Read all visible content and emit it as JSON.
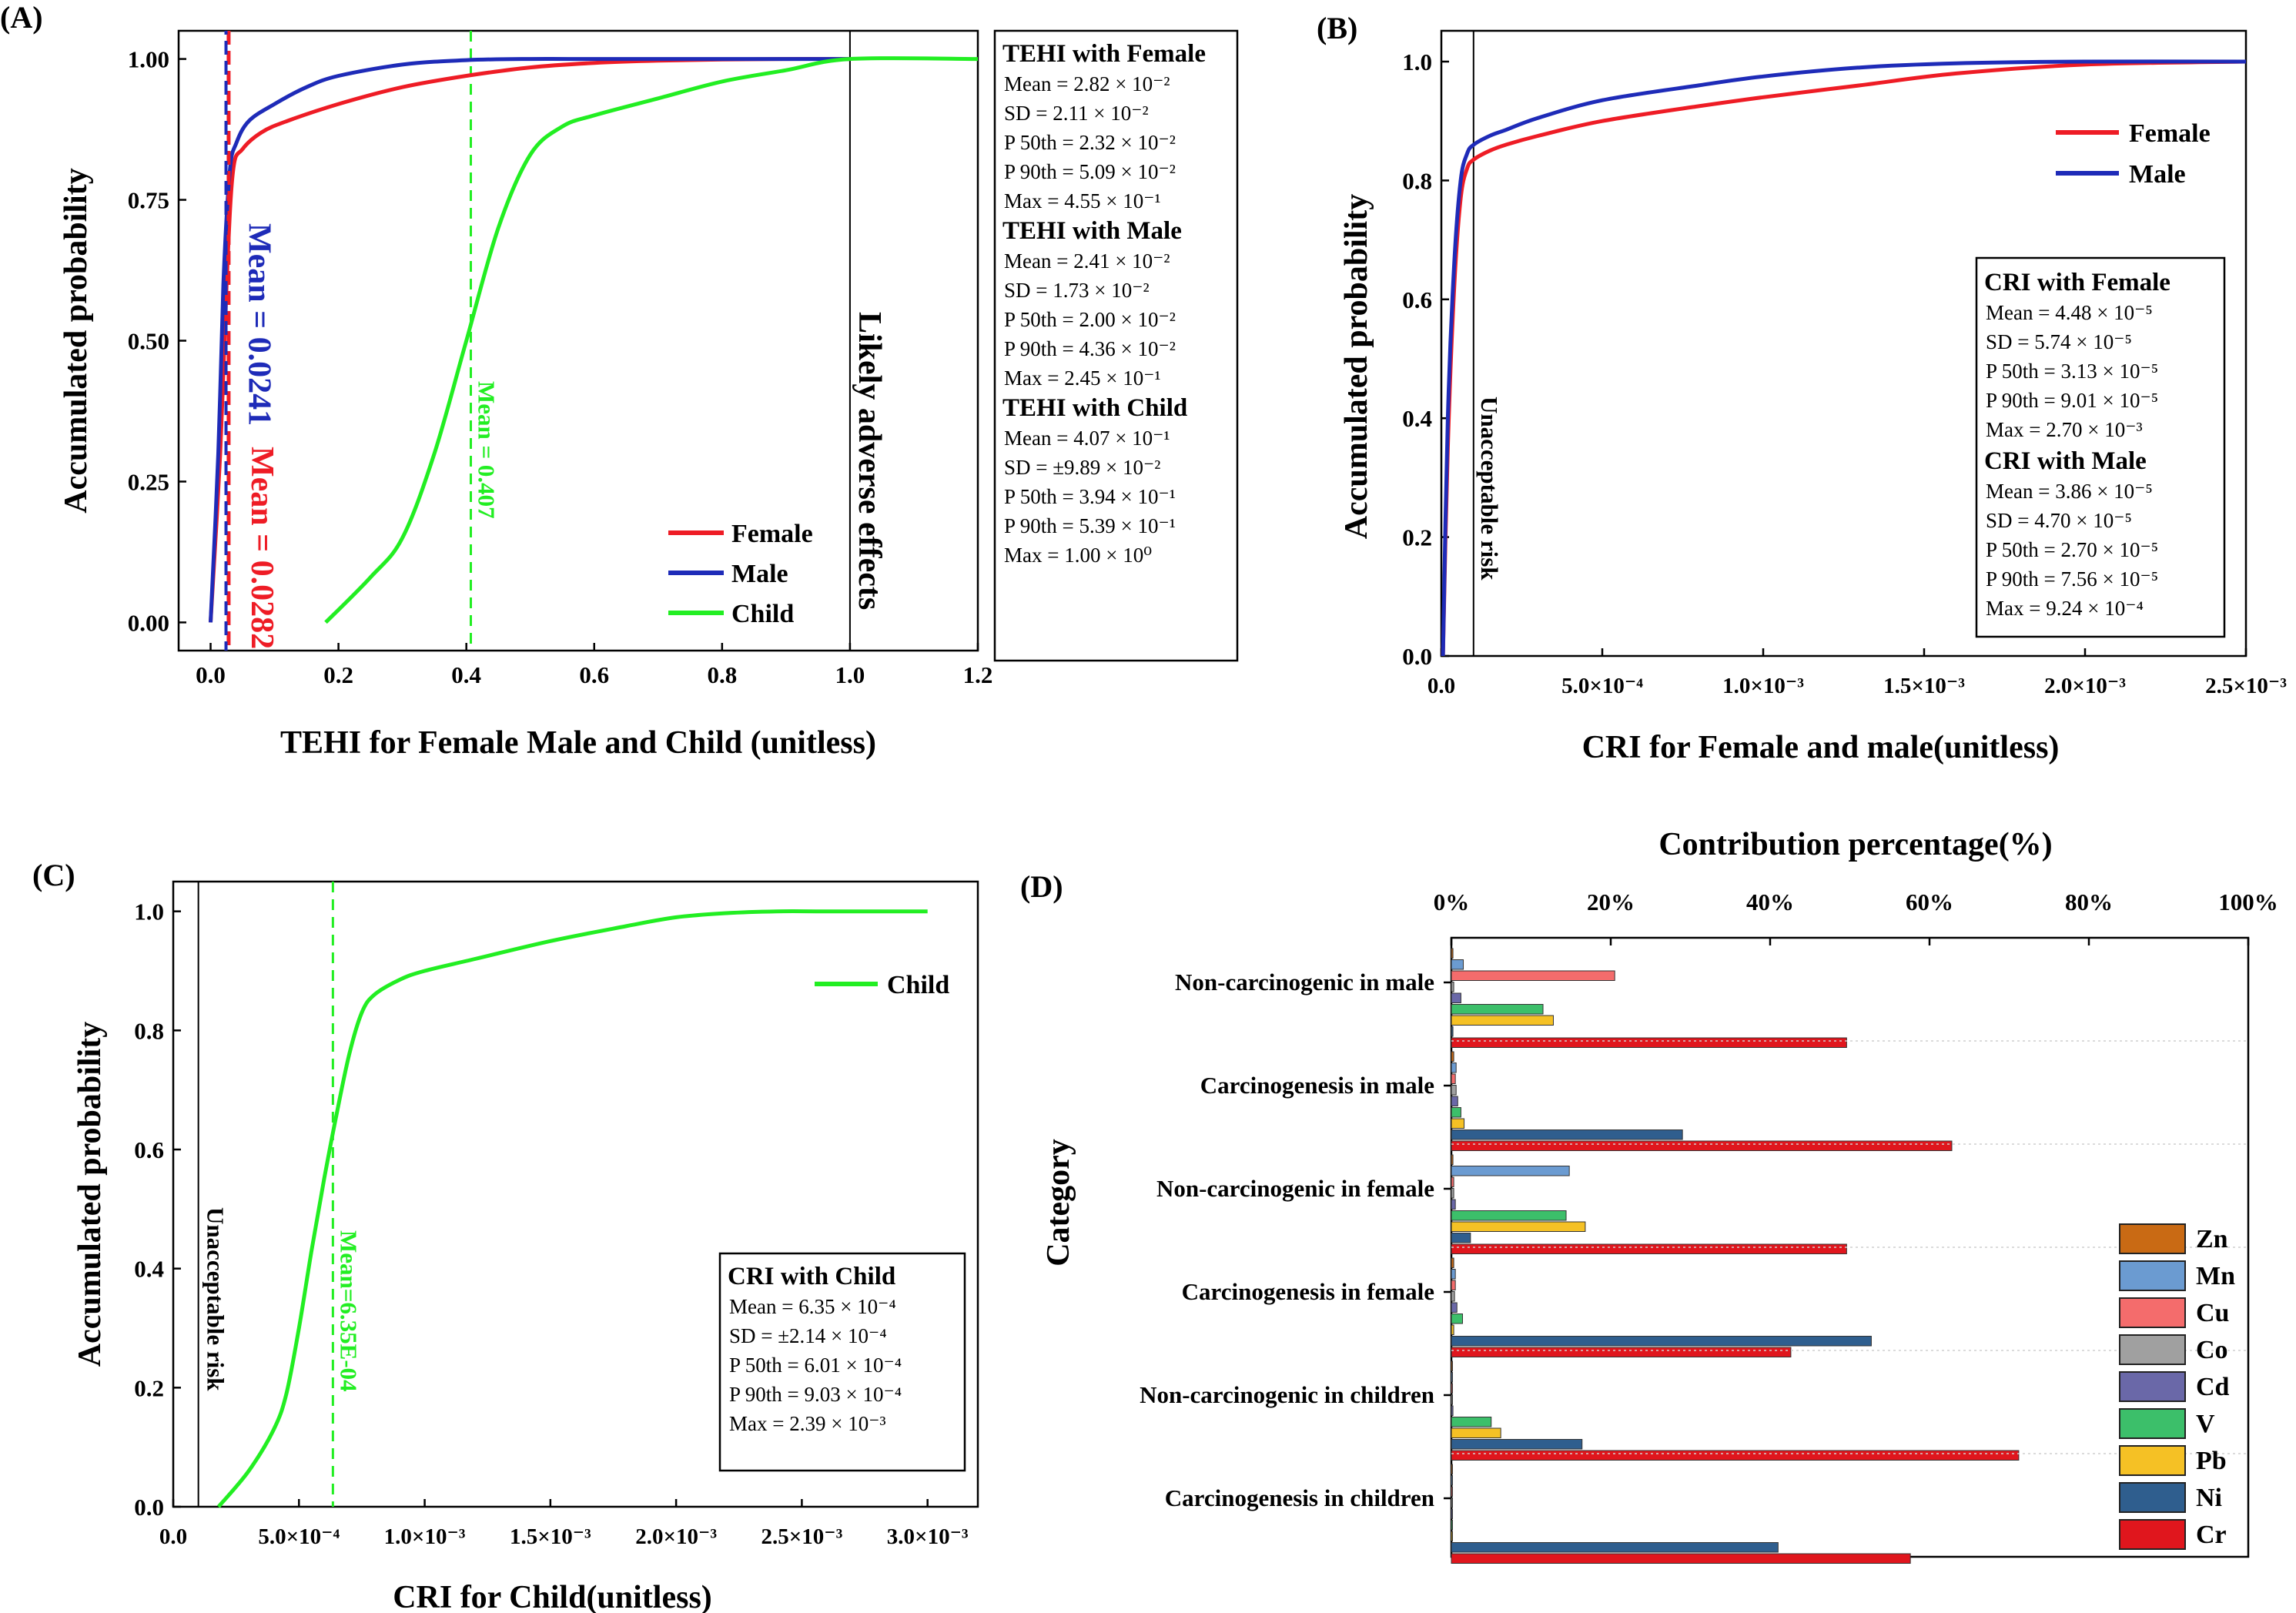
{
  "colors": {
    "female": "#ee1c25",
    "male": "#1e2bb8",
    "child": "#22ee22",
    "zn": "#c96a14",
    "mn": "#6b9bd1",
    "cu": "#f46c6c",
    "co": "#a0a0a0",
    "cd": "#6a68a8",
    "v": "#3cbf6a",
    "pb": "#f5c125",
    "ni": "#2f5e8e",
    "cr": "#e0161d"
  },
  "chart_data": [
    {
      "panel": "(A)",
      "type": "line",
      "xlabel": "TEHI for Female Male and Child (unitless)",
      "ylabel": "Accumulated probability",
      "xlim": [
        -0.05,
        1.2
      ],
      "ylim": [
        -0.05,
        1.05
      ],
      "xticks": [
        "0.0",
        "0.2",
        "0.4",
        "0.6",
        "0.8",
        "1.0",
        "1.2"
      ],
      "yticks": [
        "0.00",
        "0.25",
        "0.50",
        "0.75",
        "1.00"
      ],
      "series": [
        {
          "name": "Female",
          "x": [
            0.0,
            0.015,
            0.025,
            0.035,
            0.05,
            0.08,
            0.12,
            0.2,
            0.3,
            0.4,
            0.5,
            0.6,
            0.7,
            0.8,
            0.9,
            1.0
          ],
          "y": [
            0.0,
            0.3,
            0.6,
            0.8,
            0.84,
            0.87,
            0.89,
            0.92,
            0.95,
            0.97,
            0.985,
            0.993,
            0.997,
            0.999,
            1.0,
            1.0
          ]
        },
        {
          "name": "Male",
          "x": [
            0.0,
            0.012,
            0.02,
            0.03,
            0.04,
            0.06,
            0.1,
            0.15,
            0.2,
            0.3,
            0.4,
            0.5,
            0.6,
            1.0
          ],
          "y": [
            0.0,
            0.3,
            0.6,
            0.8,
            0.85,
            0.89,
            0.92,
            0.95,
            0.97,
            0.99,
            0.998,
            1.0,
            1.0,
            1.0
          ]
        },
        {
          "name": "Child",
          "x": [
            0.18,
            0.25,
            0.3,
            0.35,
            0.4,
            0.45,
            0.5,
            0.55,
            0.6,
            0.7,
            0.8,
            0.9,
            1.0,
            1.2
          ],
          "y": [
            0.0,
            0.08,
            0.15,
            0.3,
            0.5,
            0.7,
            0.83,
            0.88,
            0.9,
            0.93,
            0.96,
            0.98,
            1.0,
            1.0
          ]
        }
      ],
      "vlines": [
        {
          "x": 0.0241,
          "label": "Mean = 0.0241",
          "series": "Male"
        },
        {
          "x": 0.0282,
          "label": "Mean = 0.0282",
          "series": "Female"
        },
        {
          "x": 0.407,
          "label": "Mean = 0.407",
          "series": "Child"
        },
        {
          "x": 1.0,
          "label": "Likely adverse effects",
          "series": "threshold"
        }
      ],
      "legend": [
        "Female",
        "Male",
        "Child"
      ],
      "stats": [
        {
          "title": "TEHI with Female",
          "lines": [
            "Mean = 2.82 × 10⁻²",
            "SD = 2.11 × 10⁻²",
            "P 50th = 2.32 × 10⁻²",
            "P 90th = 5.09 × 10⁻²",
            "Max = 4.55 × 10⁻¹"
          ]
        },
        {
          "title": "TEHI with Male",
          "lines": [
            "Mean = 2.41 × 10⁻²",
            "SD = 1.73 × 10⁻²",
            "P 50th = 2.00 × 10⁻²",
            "P 90th = 4.36 × 10⁻²",
            "Max =  2.45 × 10⁻¹"
          ]
        },
        {
          "title": "TEHI with Child",
          "lines": [
            "Mean = 4.07 × 10⁻¹",
            "SD = ±9.89 × 10⁻²",
            "P 50th = 3.94 × 10⁻¹",
            "P 90th = 5.39 × 10⁻¹",
            "Max =  1.00 × 10⁰"
          ]
        }
      ]
    },
    {
      "panel": "(B)",
      "type": "line",
      "xlabel": "CRI for Female and male(unitless)",
      "ylabel": "Accumulated probability",
      "xlim": [
        0,
        0.0025
      ],
      "ylim": [
        0,
        1.0
      ],
      "xticks": [
        "0.0",
        "5.0×10⁻⁴",
        "1.0×10⁻³",
        "1.5×10⁻³",
        "2.0×10⁻³",
        "2.5×10⁻³"
      ],
      "yticks": [
        "0.0",
        "0.2",
        "0.4",
        "0.6",
        "0.8",
        "1.0"
      ],
      "series": [
        {
          "name": "Female",
          "x": [
            5e-06,
            2e-05,
            4e-05,
            6e-05,
            8e-05,
            0.0001,
            0.00015,
            0.0002,
            0.0003,
            0.0005,
            0.0008,
            0.001,
            0.0013,
            0.0016,
            0.002,
            0.0025
          ],
          "y": [
            0.0,
            0.35,
            0.62,
            0.77,
            0.82,
            0.835,
            0.85,
            0.86,
            0.875,
            0.9,
            0.925,
            0.94,
            0.96,
            0.98,
            0.995,
            1.0
          ]
        },
        {
          "name": "Male",
          "x": [
            5e-06,
            2e-05,
            4e-05,
            6e-05,
            8e-05,
            0.0001,
            0.00015,
            0.0002,
            0.0003,
            0.0005,
            0.0008,
            0.001,
            0.0013,
            0.0016,
            0.002,
            0.0025
          ],
          "y": [
            0.0,
            0.4,
            0.66,
            0.8,
            0.845,
            0.86,
            0.875,
            0.885,
            0.905,
            0.935,
            0.96,
            0.975,
            0.99,
            0.997,
            1.0,
            1.0
          ]
        }
      ],
      "vlines": [
        {
          "x": 0.0001,
          "label": "Unacceptable risk"
        }
      ],
      "legend": [
        "Female",
        "Male"
      ],
      "stats": [
        {
          "title": "CRI with Female",
          "lines": [
            "Mean = 4.48 × 10⁻⁵",
            "SD = 5.74 × 10⁻⁵",
            "P 50th = 3.13 × 10⁻⁵",
            "P 90th = 9.01 × 10⁻⁵",
            "Max = 2.70 × 10⁻³"
          ]
        },
        {
          "title": "CRI with Male",
          "lines": [
            "Mean = 3.86 × 10⁻⁵",
            "SD = 4.70 × 10⁻⁵",
            "P 50th = 2.70 × 10⁻⁵",
            "P 90th = 7.56 × 10⁻⁵",
            "Max =  9.24 × 10⁻⁴"
          ]
        }
      ]
    },
    {
      "panel": "(C)",
      "type": "line",
      "xlabel": "CRI for Child(unitless)",
      "ylabel": "Accumulated probability",
      "xlim": [
        0,
        0.0032
      ],
      "ylim": [
        0,
        1.05
      ],
      "xticks": [
        "0.0",
        "5.0×10⁻⁴",
        "1.0×10⁻³",
        "1.5×10⁻³",
        "2.0×10⁻³",
        "2.5×10⁻³",
        "3.0×10⁻³"
      ],
      "yticks": [
        "0.0",
        "0.2",
        "0.4",
        "0.6",
        "0.8",
        "1.0"
      ],
      "series": [
        {
          "name": "Child",
          "x": [
            0.00018,
            0.0003,
            0.0004,
            0.00045,
            0.0005,
            0.00055,
            0.0006,
            0.00065,
            0.0007,
            0.00075,
            0.0008,
            0.0009,
            0.001,
            0.0012,
            0.0015,
            0.0018,
            0.002,
            0.0022,
            0.0024,
            0.0026,
            0.003
          ],
          "y": [
            0.0,
            0.06,
            0.13,
            0.19,
            0.3,
            0.43,
            0.55,
            0.66,
            0.76,
            0.83,
            0.86,
            0.885,
            0.9,
            0.92,
            0.95,
            0.975,
            0.99,
            0.997,
            1.0,
            1.0,
            1.0
          ]
        }
      ],
      "vlines": [
        {
          "x": 0.0001,
          "label": "Unacceptable risk"
        },
        {
          "x": 0.000635,
          "label": "Mean=6.35E-04"
        }
      ],
      "legend": [
        "Child"
      ],
      "stats": [
        {
          "title": "CRI with Child",
          "lines": [
            "Mean = 6.35 × 10⁻⁴",
            "SD = ±2.14 × 10⁻⁴",
            "P 50th = 6.01 × 10⁻⁴",
            "P 90th = 9.03 × 10⁻⁴",
            "Max = 2.39 × 10⁻³"
          ]
        }
      ]
    },
    {
      "panel": "(D)",
      "type": "bar",
      "title": "Contribution percentage(%)",
      "ylabel": "Category",
      "xlim": [
        0,
        100
      ],
      "xticks": [
        "0%",
        "20%",
        "40%",
        "60%",
        "80%",
        "100%"
      ],
      "metals": [
        "Zn",
        "Mn",
        "Cu",
        "Co",
        "Cd",
        "V",
        "Pb",
        "Ni",
        "Cr"
      ],
      "categories": [
        {
          "name": "Non-carcinogenic in male",
          "values": [
            0.2,
            1.5,
            20.5,
            0.3,
            1.2,
            11.5,
            12.8,
            0.2,
            49.6
          ]
        },
        {
          "name": "Carcinogenesis in male",
          "values": [
            0.3,
            0.6,
            0.5,
            0.6,
            0.8,
            1.2,
            1.6,
            29.0,
            62.8
          ]
        },
        {
          "name": "Non-carcinogenic in female",
          "values": [
            0.2,
            14.8,
            0.3,
            0.3,
            0.5,
            14.4,
            16.8,
            2.4,
            49.6
          ]
        },
        {
          "name": "Carcinogenesis in female",
          "values": [
            0.3,
            0.5,
            0.5,
            0.4,
            0.7,
            1.4,
            0.3,
            52.7,
            42.6
          ]
        },
        {
          "name": "Non-carcinogenic in children",
          "values": [
            0.1,
            0.1,
            0.1,
            0.1,
            0.2,
            5.0,
            6.2,
            16.4,
            71.2
          ]
        },
        {
          "name": "Carcinogenesis in children",
          "values": [
            0.1,
            0.1,
            0.1,
            0.1,
            0.1,
            0.1,
            0.1,
            41.0,
            57.6
          ]
        }
      ]
    }
  ]
}
